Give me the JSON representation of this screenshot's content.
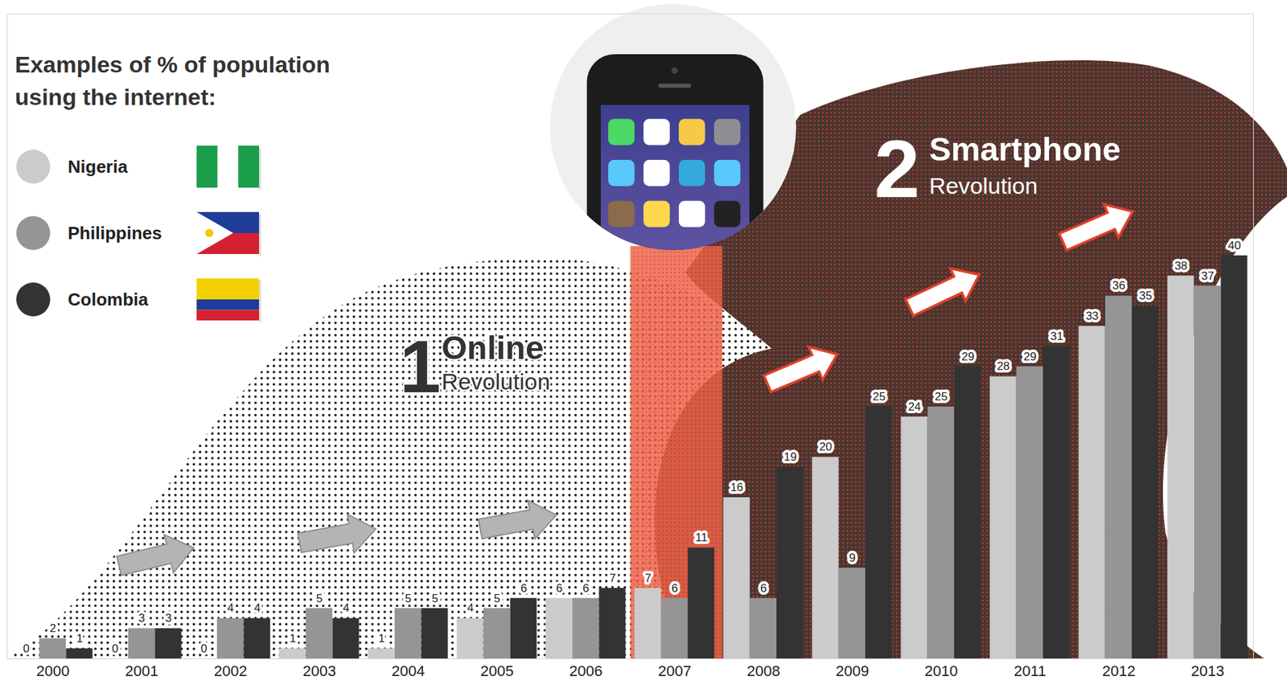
{
  "chart_data": {
    "type": "bar",
    "title": "Examples of % of population using the internet:",
    "categories": [
      "2000",
      "2001",
      "2002",
      "2003",
      "2004",
      "2005",
      "2006",
      "2007",
      "2008",
      "2009",
      "2010",
      "2011",
      "2012",
      "2013"
    ],
    "series": [
      {
        "name": "Nigeria",
        "color": "#cbcbcb",
        "values": [
          0,
          0,
          0,
          1,
          1,
          4,
          6,
          7,
          16,
          20,
          24,
          28,
          33,
          38
        ]
      },
      {
        "name": "Philippines",
        "color": "#959595",
        "values": [
          2,
          3,
          4,
          5,
          5,
          5,
          6,
          6,
          6,
          9,
          25,
          29,
          36,
          37
        ]
      },
      {
        "name": "Colombia",
        "color": "#333333",
        "values": [
          1,
          3,
          4,
          4,
          5,
          6,
          7,
          11,
          19,
          25,
          29,
          31,
          35,
          40
        ]
      }
    ],
    "ylim": [
      0,
      64
    ],
    "tick_labels": "x",
    "data_labels": true,
    "legend": "top-left",
    "annotations": [
      {
        "number": "1",
        "title": "Online",
        "subtitle": "Revolution"
      },
      {
        "number": "2",
        "title": "Smartphone",
        "subtitle": "Revolution"
      }
    ]
  }
}
